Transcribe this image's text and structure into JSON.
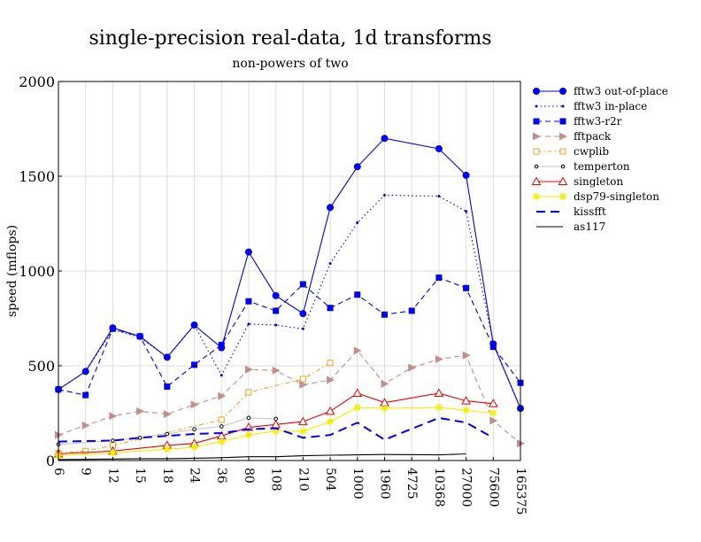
{
  "chart_data": {
    "type": "line",
    "title": "single-precision real-data, 1d transforms",
    "subtitle": "non-powers of two",
    "xlabel": "",
    "ylabel": "speed (mflops)",
    "categories": [
      "6",
      "9",
      "12",
      "15",
      "18",
      "24",
      "36",
      "80",
      "108",
      "210",
      "504",
      "1000",
      "1960",
      "4725",
      "10368",
      "27000",
      "75600",
      "165375"
    ],
    "ylim": [
      0,
      2000
    ],
    "yticks": [
      0,
      500,
      1000,
      1500,
      2000
    ],
    "grid": true,
    "legend_position": "right",
    "series": [
      {
        "name": "fftw3 out-of-place",
        "color": "#0000ee",
        "dash": "",
        "marker": "circle",
        "values": [
          375,
          470,
          700,
          655,
          545,
          715,
          595,
          1100,
          870,
          775,
          1335,
          1550,
          1700,
          null,
          1645,
          1505,
          615,
          275
        ]
      },
      {
        "name": "fftw3 in-place",
        "color": "#0000ee",
        "dash": "1.5,3",
        "marker": "dot",
        "values": [
          375,
          470,
          690,
          650,
          545,
          715,
          450,
          720,
          715,
          695,
          1040,
          1255,
          1400,
          null,
          1395,
          1315,
          620,
          275
        ]
      },
      {
        "name": "fftw3-r2r",
        "color": "#0000ee",
        "dash": "6,4",
        "marker": "square",
        "values": [
          375,
          345,
          695,
          655,
          390,
          505,
          610,
          840,
          790,
          930,
          805,
          875,
          770,
          790,
          965,
          910,
          600,
          410
        ]
      },
      {
        "name": "fftpack",
        "color": "#c0908a",
        "dash": "6,4",
        "marker": "triangle-right",
        "values": [
          135,
          185,
          235,
          260,
          245,
          295,
          340,
          480,
          475,
          400,
          425,
          580,
          405,
          490,
          535,
          555,
          210,
          90
        ]
      },
      {
        "name": "cwplib",
        "color": "#f0a020",
        "dash": "5,3,1.5,3",
        "marker": "open-square",
        "values": [
          40,
          50,
          80,
          null,
          null,
          null,
          215,
          360,
          null,
          430,
          515,
          null,
          null,
          null,
          null,
          null,
          null,
          null
        ]
      },
      {
        "name": "temperton",
        "color": "#c8c8c8",
        "dash": "",
        "marker": "small-open-circle",
        "values": [
          85,
          null,
          105,
          120,
          140,
          165,
          180,
          225,
          220,
          null,
          null,
          null,
          null,
          null,
          null,
          null,
          null,
          null
        ]
      },
      {
        "name": "singleton",
        "color": "#ee0000",
        "dash": "",
        "marker": "open-triangle",
        "values": [
          35,
          null,
          50,
          null,
          80,
          90,
          130,
          175,
          190,
          205,
          260,
          355,
          305,
          null,
          355,
          315,
          300,
          null
        ]
      },
      {
        "name": "dsp79-singleton",
        "color": "#f0f000",
        "dash": "",
        "marker": "star",
        "values": [
          25,
          null,
          40,
          null,
          60,
          70,
          100,
          135,
          155,
          155,
          205,
          280,
          275,
          null,
          280,
          265,
          250,
          null
        ]
      },
      {
        "name": "kissfft",
        "color": "#0000ee",
        "dash": "10,6",
        "marker": "none",
        "values": [
          100,
          null,
          105,
          120,
          130,
          140,
          145,
          165,
          170,
          120,
          135,
          200,
          110,
          null,
          225,
          200,
          120,
          null
        ]
      },
      {
        "name": "as117",
        "color": "#000000",
        "dash": "",
        "marker": "none",
        "values": [
          5,
          null,
          8,
          10,
          10,
          12,
          15,
          20,
          20,
          25,
          28,
          30,
          32,
          null,
          30,
          35,
          null,
          null
        ]
      }
    ]
  }
}
